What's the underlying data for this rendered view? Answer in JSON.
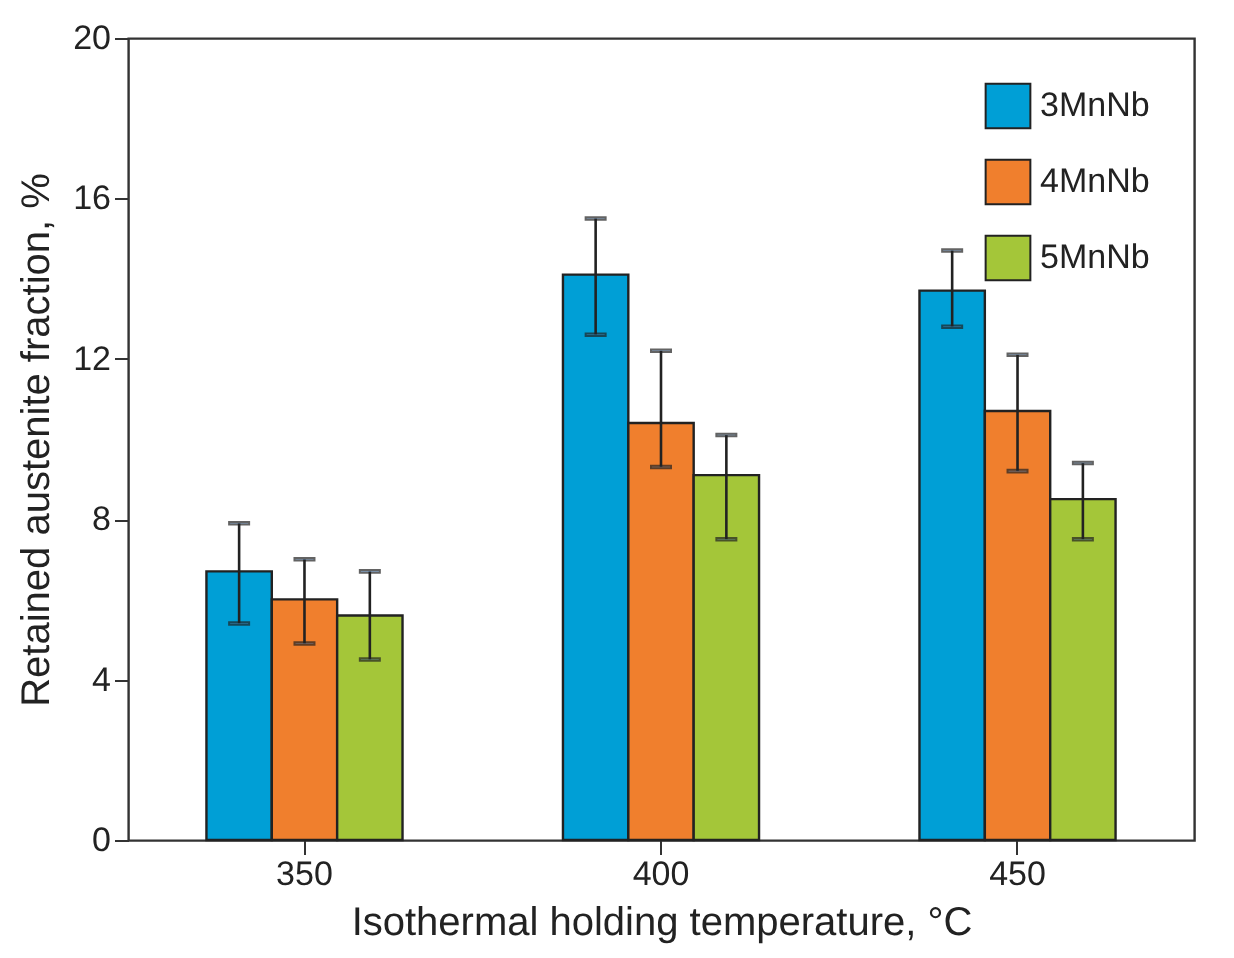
{
  "chart_data": {
    "type": "bar",
    "xlabel": "Isothermal holding temperature, °C",
    "ylabel": "Retained austenite fraction, %",
    "categories": [
      "350",
      "400",
      "450"
    ],
    "ylim": [
      0,
      20
    ],
    "yticks": [
      0,
      4,
      8,
      12,
      16,
      20
    ],
    "grid": false,
    "legend": "top right",
    "series": [
      {
        "name": "3MnNb",
        "color": "#009fd6",
        "values": [
          6.7,
          14.1,
          13.7
        ],
        "errors": [
          [
            5.4,
            7.9
          ],
          [
            12.6,
            15.5
          ],
          [
            12.8,
            14.7
          ]
        ]
      },
      {
        "name": "4MnNb",
        "color": "#f07f2d",
        "values": [
          6.0,
          10.4,
          10.7
        ],
        "errors": [
          [
            4.9,
            7.0
          ],
          [
            9.3,
            12.2
          ],
          [
            9.2,
            12.1
          ]
        ]
      },
      {
        "name": "5MnNb",
        "color": "#a4c639",
        "values": [
          5.6,
          9.1,
          8.5
        ],
        "errors": [
          [
            4.5,
            6.7
          ],
          [
            7.5,
            10.1
          ],
          [
            7.5,
            9.4
          ]
        ]
      }
    ]
  }
}
